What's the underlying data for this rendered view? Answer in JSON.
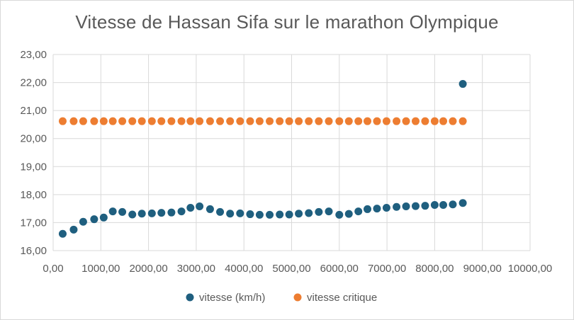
{
  "chart_data": {
    "type": "scatter",
    "title": "Vitesse de Hassan Sifa sur le marathon Olympique",
    "xlim": [
      0,
      10000
    ],
    "ylim": [
      16,
      23
    ],
    "x_ticks": [
      "0,00",
      "1000,00",
      "2000,00",
      "3000,00",
      "4000,00",
      "5000,00",
      "6000,00",
      "7000,00",
      "8000,00",
      "9000,00",
      "10000,00"
    ],
    "y_ticks": [
      "16,00",
      "17,00",
      "18,00",
      "19,00",
      "20,00",
      "21,00",
      "22,00",
      "23,00"
    ],
    "grid": true,
    "legend_position": "bottom",
    "series": [
      {
        "name": "vitesse (km/h)",
        "color": "#1f5f7f",
        "points": [
          [
            200,
            16.6
          ],
          [
            430,
            16.75
          ],
          [
            630,
            17.03
          ],
          [
            860,
            17.12
          ],
          [
            1060,
            17.18
          ],
          [
            1250,
            17.4
          ],
          [
            1450,
            17.38
          ],
          [
            1660,
            17.29
          ],
          [
            1860,
            17.32
          ],
          [
            2070,
            17.33
          ],
          [
            2270,
            17.35
          ],
          [
            2480,
            17.36
          ],
          [
            2690,
            17.4
          ],
          [
            2880,
            17.53
          ],
          [
            3070,
            17.58
          ],
          [
            3290,
            17.48
          ],
          [
            3500,
            17.38
          ],
          [
            3710,
            17.32
          ],
          [
            3920,
            17.33
          ],
          [
            4130,
            17.3
          ],
          [
            4330,
            17.28
          ],
          [
            4540,
            17.28
          ],
          [
            4750,
            17.29
          ],
          [
            4950,
            17.29
          ],
          [
            5150,
            17.32
          ],
          [
            5360,
            17.34
          ],
          [
            5570,
            17.38
          ],
          [
            5780,
            17.4
          ],
          [
            6000,
            17.28
          ],
          [
            6200,
            17.31
          ],
          [
            6400,
            17.4
          ],
          [
            6590,
            17.48
          ],
          [
            6790,
            17.5
          ],
          [
            6990,
            17.53
          ],
          [
            7200,
            17.56
          ],
          [
            7400,
            17.58
          ],
          [
            7600,
            17.59
          ],
          [
            7800,
            17.6
          ],
          [
            8000,
            17.63
          ],
          [
            8180,
            17.63
          ],
          [
            8380,
            17.65
          ],
          [
            8590,
            17.7
          ],
          [
            8590,
            21.95
          ]
        ]
      },
      {
        "name": "vitesse critique",
        "color": "#ed7d31",
        "points": [
          [
            200,
            20.62
          ],
          [
            430,
            20.62
          ],
          [
            630,
            20.62
          ],
          [
            860,
            20.62
          ],
          [
            1060,
            20.62
          ],
          [
            1250,
            20.62
          ],
          [
            1450,
            20.62
          ],
          [
            1660,
            20.62
          ],
          [
            1860,
            20.62
          ],
          [
            2070,
            20.62
          ],
          [
            2270,
            20.62
          ],
          [
            2480,
            20.62
          ],
          [
            2690,
            20.62
          ],
          [
            2880,
            20.62
          ],
          [
            3070,
            20.62
          ],
          [
            3290,
            20.62
          ],
          [
            3500,
            20.62
          ],
          [
            3710,
            20.62
          ],
          [
            3920,
            20.62
          ],
          [
            4130,
            20.62
          ],
          [
            4330,
            20.62
          ],
          [
            4540,
            20.62
          ],
          [
            4750,
            20.62
          ],
          [
            4950,
            20.62
          ],
          [
            5150,
            20.62
          ],
          [
            5360,
            20.62
          ],
          [
            5570,
            20.62
          ],
          [
            5780,
            20.62
          ],
          [
            6000,
            20.62
          ],
          [
            6200,
            20.62
          ],
          [
            6400,
            20.62
          ],
          [
            6590,
            20.62
          ],
          [
            6790,
            20.62
          ],
          [
            6990,
            20.62
          ],
          [
            7200,
            20.62
          ],
          [
            7400,
            20.62
          ],
          [
            7600,
            20.62
          ],
          [
            7800,
            20.62
          ],
          [
            8000,
            20.62
          ],
          [
            8180,
            20.62
          ],
          [
            8380,
            20.62
          ],
          [
            8590,
            20.62
          ]
        ]
      }
    ]
  }
}
